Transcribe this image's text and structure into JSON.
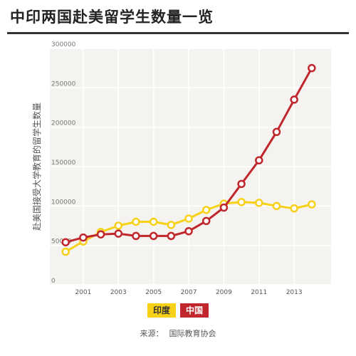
{
  "title": "中印两国赴美留学生数量一览",
  "source": {
    "label": "来源：",
    "value": "国际教育协会"
  },
  "colors": {
    "india": "#f7d117",
    "china": "#c0272d",
    "plot_bg": "#f4f3f0",
    "grid": "#ffffff"
  },
  "chart_data": {
    "type": "line",
    "title": "中印两国赴美留学生数量一览",
    "ylabel": "赴美国接受大学教育的留学生数量",
    "xlabel": "",
    "x": [
      2000,
      2001,
      2002,
      2003,
      2004,
      2005,
      2006,
      2007,
      2008,
      2009,
      2010,
      2011,
      2012,
      2013,
      2014
    ],
    "xlim": [
      1999.1,
      2015.1
    ],
    "ylim": [
      0,
      300000
    ],
    "x_ticks": [
      2001,
      2003,
      2005,
      2007,
      2009,
      2011,
      2013
    ],
    "x_tick_labels": [
      "2001",
      "2003",
      "2005",
      "2007",
      "2009",
      "2011",
      "2013"
    ],
    "y_ticks": [
      0,
      50000,
      100000,
      150000,
      200000,
      250000,
      300000
    ],
    "y_tick_labels": [
      "0",
      "50000",
      "100000",
      "150000",
      "200000",
      "250000",
      "300000"
    ],
    "grid": true,
    "legend_position": "bottom-center",
    "series": [
      {
        "name": "印度",
        "color": "#f7d117",
        "values": [
          42000,
          55000,
          67000,
          75000,
          80000,
          80000,
          76000,
          84000,
          95000,
          103000,
          105000,
          104000,
          100000,
          97000,
          102000
        ]
      },
      {
        "name": "中国",
        "color": "#c0272d",
        "values": [
          54000,
          60000,
          64000,
          65000,
          62000,
          62000,
          62000,
          68000,
          81000,
          98000,
          128000,
          158000,
          194000,
          235000,
          275000
        ]
      }
    ]
  }
}
